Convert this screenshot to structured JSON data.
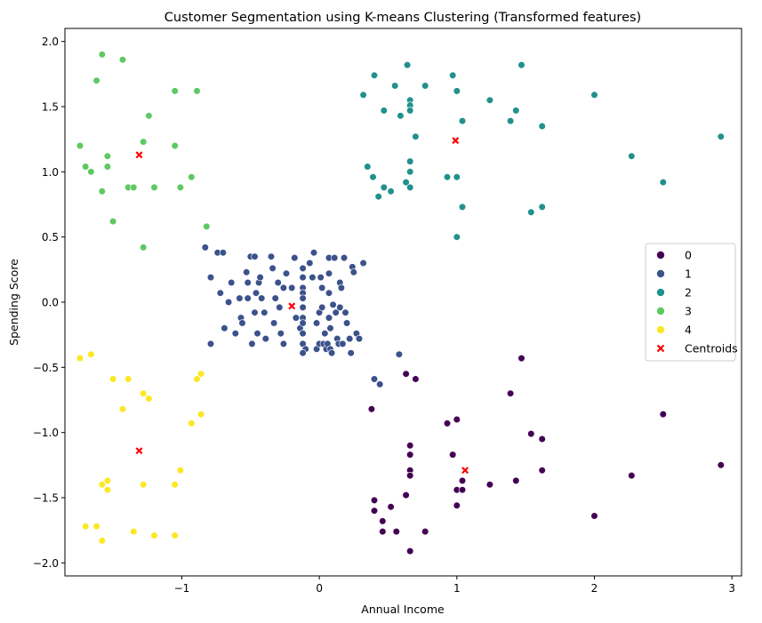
{
  "chart_data": {
    "type": "scatter",
    "title": "Customer Segmentation using K-means Clustering (Transformed features)",
    "xlabel": "Annual Income",
    "ylabel": "Spending Score",
    "xlim": [
      -1.85,
      3.07
    ],
    "ylim": [
      -2.1,
      2.1
    ],
    "xticks": [
      -1,
      0,
      1,
      2,
      3
    ],
    "xtick_labels": [
      "−1",
      "0",
      "1",
      "2",
      "3"
    ],
    "yticks": [
      -2.0,
      -1.5,
      -1.0,
      -0.5,
      0.0,
      0.5,
      1.0,
      1.5,
      2.0
    ],
    "ytick_labels": [
      "−2.0",
      "−1.5",
      "−1.0",
      "−0.5",
      "0.0",
      "0.5",
      "1.0",
      "1.5",
      "2.0"
    ],
    "grid": false,
    "legend_position": "center-right",
    "series": [
      {
        "name": "0",
        "color": "#440154",
        "points": [
          [
            0.38,
            -0.82
          ],
          [
            0.4,
            -1.52
          ],
          [
            0.4,
            -1.6
          ],
          [
            0.46,
            -1.68
          ],
          [
            0.46,
            -1.76
          ],
          [
            0.52,
            -1.57
          ],
          [
            0.56,
            -1.76
          ],
          [
            0.63,
            -1.48
          ],
          [
            0.66,
            -1.1
          ],
          [
            0.66,
            -1.17
          ],
          [
            0.66,
            -1.29
          ],
          [
            0.66,
            -1.33
          ],
          [
            0.66,
            -1.91
          ],
          [
            0.77,
            -1.76
          ],
          [
            0.93,
            -0.93
          ],
          [
            0.97,
            -1.17
          ],
          [
            1.0,
            -0.9
          ],
          [
            1.0,
            -1.44
          ],
          [
            1.0,
            -1.56
          ],
          [
            1.04,
            -1.37
          ],
          [
            1.04,
            -1.44
          ],
          [
            1.24,
            -1.4
          ],
          [
            1.39,
            -0.7
          ],
          [
            1.43,
            -1.37
          ],
          [
            1.54,
            -1.01
          ],
          [
            1.62,
            -1.05
          ],
          [
            1.62,
            -1.29
          ],
          [
            2.0,
            -1.64
          ],
          [
            2.27,
            -1.33
          ],
          [
            2.5,
            -0.86
          ],
          [
            2.92,
            -1.25
          ],
          [
            1.47,
            -0.43
          ],
          [
            0.63,
            -0.55
          ],
          [
            0.7,
            -0.59
          ]
        ]
      },
      {
        "name": "1",
        "color": "#3b528b",
        "points": [
          [
            -0.83,
            0.42
          ],
          [
            -0.79,
            0.19
          ],
          [
            -0.79,
            -0.32
          ],
          [
            -0.74,
            0.38
          ],
          [
            -0.72,
            0.07
          ],
          [
            -0.7,
            0.38
          ],
          [
            -0.69,
            -0.2
          ],
          [
            -0.66,
            0.0
          ],
          [
            -0.64,
            0.15
          ],
          [
            -0.61,
            -0.24
          ],
          [
            -0.58,
            0.03
          ],
          [
            -0.57,
            -0.12
          ],
          [
            -0.56,
            -0.16
          ],
          [
            -0.53,
            0.23
          ],
          [
            -0.52,
            0.15
          ],
          [
            -0.52,
            0.03
          ],
          [
            -0.5,
            0.35
          ],
          [
            -0.49,
            -0.32
          ],
          [
            -0.47,
            0.35
          ],
          [
            -0.47,
            -0.08
          ],
          [
            -0.46,
            0.07
          ],
          [
            -0.45,
            -0.24
          ],
          [
            -0.44,
            0.15
          ],
          [
            -0.43,
            0.19
          ],
          [
            -0.42,
            0.03
          ],
          [
            -0.4,
            -0.08
          ],
          [
            -0.39,
            -0.28
          ],
          [
            -0.35,
            0.35
          ],
          [
            -0.34,
            0.26
          ],
          [
            -0.33,
            -0.16
          ],
          [
            -0.32,
            0.03
          ],
          [
            -0.3,
            0.15
          ],
          [
            -0.29,
            -0.04
          ],
          [
            -0.28,
            -0.24
          ],
          [
            -0.26,
            0.11
          ],
          [
            -0.26,
            -0.32
          ],
          [
            -0.24,
            0.22
          ],
          [
            -0.2,
            0.11
          ],
          [
            -0.18,
            0.34
          ],
          [
            -0.17,
            -0.12
          ],
          [
            -0.14,
            -0.2
          ],
          [
            -0.12,
            0.26
          ],
          [
            -0.12,
            0.19
          ],
          [
            -0.12,
            0.11
          ],
          [
            -0.12,
            0.07
          ],
          [
            -0.12,
            0.03
          ],
          [
            -0.12,
            -0.04
          ],
          [
            -0.12,
            -0.12
          ],
          [
            -0.12,
            -0.16
          ],
          [
            -0.12,
            -0.24
          ],
          [
            -0.12,
            -0.32
          ],
          [
            -0.1,
            -0.36
          ],
          [
            -0.07,
            0.3
          ],
          [
            -0.05,
            0.19
          ],
          [
            -0.04,
            0.38
          ],
          [
            -0.02,
            -0.16
          ],
          [
            -0.02,
            -0.36
          ],
          [
            0.0,
            -0.32
          ],
          [
            0.0,
            -0.08
          ],
          [
            0.01,
            0.19
          ],
          [
            0.02,
            0.11
          ],
          [
            0.02,
            -0.04
          ],
          [
            0.03,
            -0.32
          ],
          [
            0.04,
            -0.24
          ],
          [
            0.05,
            -0.36
          ],
          [
            0.06,
            -0.32
          ],
          [
            0.07,
            0.34
          ],
          [
            0.07,
            0.22
          ],
          [
            0.07,
            0.07
          ],
          [
            0.07,
            -0.12
          ],
          [
            0.08,
            -0.2
          ],
          [
            0.08,
            -0.36
          ],
          [
            0.09,
            -0.39
          ],
          [
            0.1,
            -0.02
          ],
          [
            0.11,
            0.34
          ],
          [
            0.12,
            -0.08
          ],
          [
            0.13,
            -0.28
          ],
          [
            0.14,
            -0.32
          ],
          [
            0.15,
            0.15
          ],
          [
            0.15,
            -0.04
          ],
          [
            0.16,
            0.11
          ],
          [
            0.17,
            -0.32
          ],
          [
            0.18,
            0.34
          ],
          [
            0.19,
            -0.08
          ],
          [
            0.2,
            -0.16
          ],
          [
            0.22,
            -0.28
          ],
          [
            0.23,
            -0.39
          ],
          [
            0.24,
            0.27
          ],
          [
            0.25,
            0.23
          ],
          [
            0.27,
            -0.24
          ],
          [
            0.29,
            -0.28
          ],
          [
            0.32,
            0.3
          ],
          [
            0.4,
            -0.59
          ],
          [
            0.44,
            -0.63
          ],
          [
            0.58,
            -0.4
          ],
          [
            -0.12,
            -0.39
          ]
        ]
      },
      {
        "name": "2",
        "color": "#21918c",
        "points": [
          [
            0.32,
            1.59
          ],
          [
            0.35,
            1.04
          ],
          [
            0.39,
            0.96
          ],
          [
            0.4,
            1.74
          ],
          [
            0.43,
            0.81
          ],
          [
            0.47,
            1.47
          ],
          [
            0.47,
            0.88
          ],
          [
            0.52,
            0.85
          ],
          [
            0.55,
            1.66
          ],
          [
            0.59,
            1.43
          ],
          [
            0.63,
            0.92
          ],
          [
            0.64,
            1.82
          ],
          [
            0.66,
            1.55
          ],
          [
            0.66,
            1.51
          ],
          [
            0.66,
            1.47
          ],
          [
            0.66,
            1.08
          ],
          [
            0.66,
            1.0
          ],
          [
            0.66,
            0.88
          ],
          [
            0.7,
            1.27
          ],
          [
            0.77,
            1.66
          ],
          [
            0.93,
            0.96
          ],
          [
            0.97,
            1.74
          ],
          [
            1.0,
            1.62
          ],
          [
            1.0,
            0.96
          ],
          [
            1.0,
            0.5
          ],
          [
            1.04,
            1.39
          ],
          [
            1.04,
            0.73
          ],
          [
            1.24,
            1.55
          ],
          [
            1.39,
            1.39
          ],
          [
            1.43,
            1.47
          ],
          [
            1.47,
            1.82
          ],
          [
            1.54,
            0.69
          ],
          [
            1.62,
            1.35
          ],
          [
            1.62,
            0.73
          ],
          [
            2.0,
            1.59
          ],
          [
            2.27,
            1.12
          ],
          [
            2.5,
            0.92
          ],
          [
            2.92,
            1.27
          ]
        ]
      },
      {
        "name": "3",
        "color": "#5ec962",
        "points": [
          [
            -1.74,
            1.2
          ],
          [
            -1.7,
            1.04
          ],
          [
            -1.66,
            1.0
          ],
          [
            -1.62,
            1.7
          ],
          [
            -1.58,
            1.9
          ],
          [
            -1.58,
            0.85
          ],
          [
            -1.54,
            1.12
          ],
          [
            -1.54,
            1.04
          ],
          [
            -1.5,
            0.62
          ],
          [
            -1.43,
            1.86
          ],
          [
            -1.39,
            0.88
          ],
          [
            -1.35,
            0.88
          ],
          [
            -1.28,
            1.23
          ],
          [
            -1.28,
            0.42
          ],
          [
            -1.24,
            1.43
          ],
          [
            -1.2,
            0.88
          ],
          [
            -1.05,
            1.62
          ],
          [
            -1.05,
            1.2
          ],
          [
            -1.01,
            0.88
          ],
          [
            -0.93,
            0.96
          ],
          [
            -0.89,
            1.62
          ],
          [
            -0.82,
            0.58
          ]
        ]
      },
      {
        "name": "4",
        "color": "#fde725",
        "points": [
          [
            -1.74,
            -0.43
          ],
          [
            -1.7,
            -1.72
          ],
          [
            -1.66,
            -0.4
          ],
          [
            -1.62,
            -1.72
          ],
          [
            -1.58,
            -1.4
          ],
          [
            -1.58,
            -1.83
          ],
          [
            -1.54,
            -1.37
          ],
          [
            -1.54,
            -1.44
          ],
          [
            -1.5,
            -0.59
          ],
          [
            -1.43,
            -0.82
          ],
          [
            -1.39,
            -0.59
          ],
          [
            -1.35,
            -1.76
          ],
          [
            -1.28,
            -0.7
          ],
          [
            -1.28,
            -1.4
          ],
          [
            -1.24,
            -0.74
          ],
          [
            -1.2,
            -1.79
          ],
          [
            -0.93,
            -0.93
          ],
          [
            -0.89,
            -0.59
          ],
          [
            -0.86,
            -0.55
          ],
          [
            -0.86,
            -0.86
          ],
          [
            -1.05,
            -1.4
          ],
          [
            -1.05,
            -1.79
          ],
          [
            -1.01,
            -1.29
          ]
        ]
      }
    ],
    "centroids": {
      "name": "Centroids",
      "color": "#ff0000",
      "marker": "x",
      "points": [
        [
          -1.31,
          1.13
        ],
        [
          -0.2,
          -0.03
        ],
        [
          0.99,
          1.24
        ],
        [
          -1.31,
          -1.14
        ],
        [
          1.06,
          -1.29
        ]
      ]
    }
  }
}
